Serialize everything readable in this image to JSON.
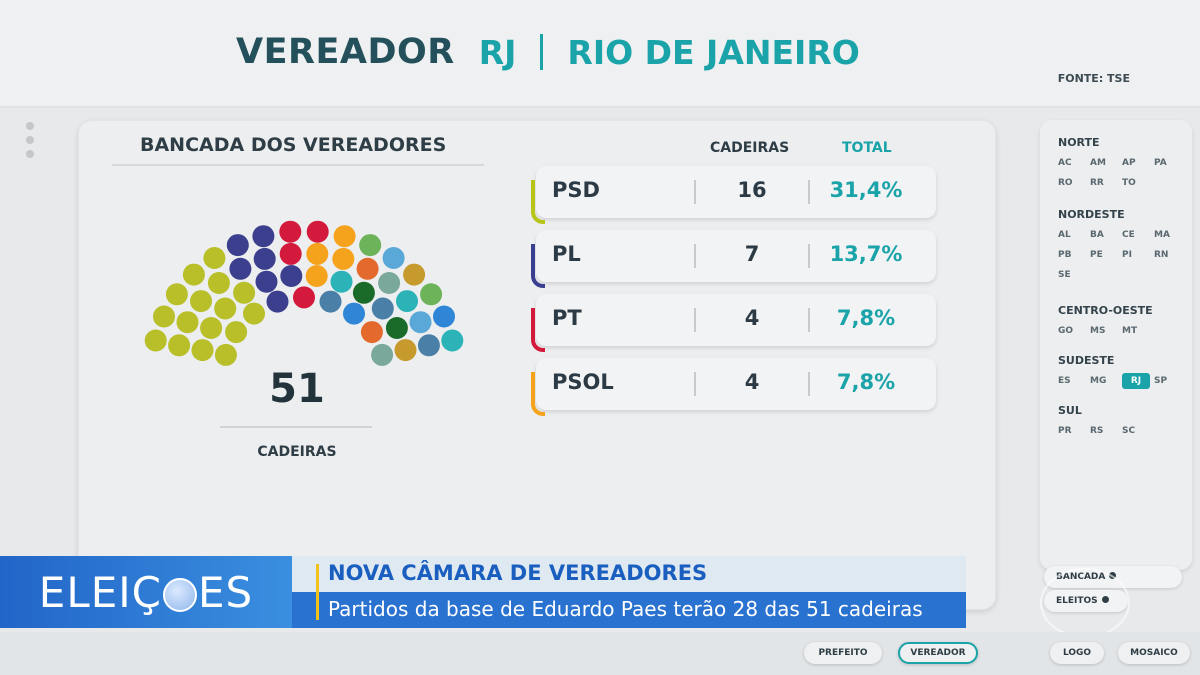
{
  "header": {
    "title": "VEREADOR",
    "uf": "RJ",
    "city": "RIO DE JANEIRO",
    "source": "FONTE: TSE"
  },
  "bancada": {
    "title": "BANCADA DOS VEREADORES",
    "total": "51",
    "total_label": "CADEIRAS"
  },
  "table": {
    "col_cadeiras": "CADEIRAS",
    "col_total": "TOTAL",
    "rows": [
      {
        "party": "PSD",
        "seats": "16",
        "pct": "31,4%",
        "color": "#b7c41a"
      },
      {
        "party": "PL",
        "seats": "7",
        "pct": "13,7%",
        "color": "#3a3f8f"
      },
      {
        "party": "PT",
        "seats": "4",
        "pct": "7,8%",
        "color": "#d3193c"
      },
      {
        "party": "PSOL",
        "seats": "4",
        "pct": "7,8%",
        "color": "#f5a31c"
      }
    ]
  },
  "hemicycle_colors": {
    "PSD": "#b8bf28",
    "PL": "#3c3f8e",
    "PT": "#d3193c",
    "PSOL": "#f5a31c",
    "others": [
      "#4a7fa8",
      "#2bb3b8",
      "#6db35a",
      "#e36a2c",
      "#1a6a2a",
      "#5aa8d8",
      "#2f86d6",
      "#7aa89a",
      "#c79a2e"
    ]
  },
  "regions": [
    {
      "name": "NORTE",
      "ufs": [
        "AC",
        "AM",
        "AP",
        "PA",
        "RO",
        "RR",
        "TO"
      ]
    },
    {
      "name": "NORDESTE",
      "ufs": [
        "AL",
        "BA",
        "CE",
        "MA",
        "PB",
        "PE",
        "PI",
        "RN",
        "SE"
      ]
    },
    {
      "name": "CENTRO-OESTE",
      "ufs": [
        "GO",
        "MS",
        "MT"
      ]
    },
    {
      "name": "SUDESTE",
      "ufs": [
        "ES",
        "MG",
        "RJ",
        "SP"
      ],
      "active": "RJ"
    },
    {
      "name": "SUL",
      "ufs": [
        "PR",
        "RS",
        "SC"
      ]
    }
  ],
  "side_buttons": {
    "bancada": "BANCADA",
    "eleitos": "ELEITOS"
  },
  "bottom_nav": {
    "prefeito": "PREFEITO",
    "vereador": "VEREADOR",
    "logo": "LOGO",
    "mosaico": "MOSAICO"
  },
  "lower_third": {
    "brand": "ELEIÇÕES",
    "headline": "NOVA CÂMARA DE VEREADORES",
    "subline": "Partidos da base de Eduardo Paes terão 28 das 51 cadeiras"
  }
}
